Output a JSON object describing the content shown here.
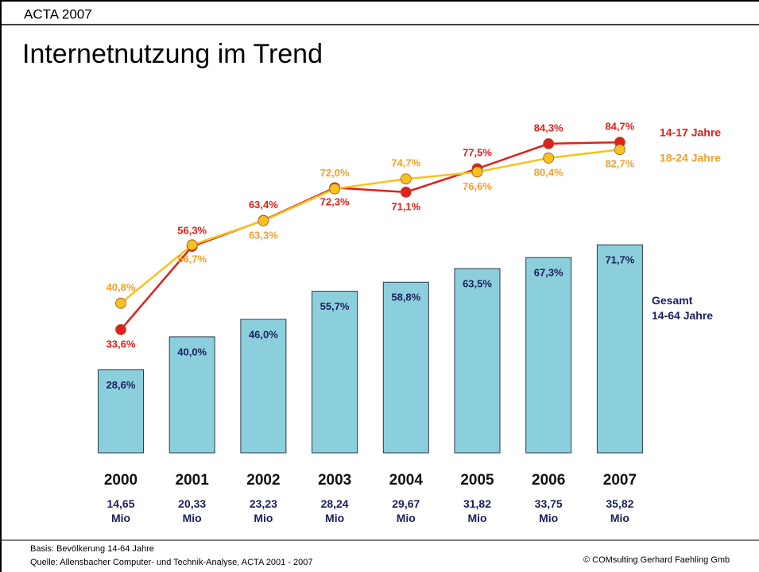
{
  "header": {
    "kicker": "ACTA 2007",
    "title": "Internetnutzung im Trend"
  },
  "chart_data": {
    "type": "bar-line",
    "categories": [
      "2000",
      "2001",
      "2002",
      "2003",
      "2004",
      "2005",
      "2006",
      "2007"
    ],
    "category_sublabels": [
      "14,65\nMio",
      "20,33\nMio",
      "23,23\nMio",
      "28,24\nMio",
      "29,67\nMio",
      "31,82\nMio",
      "33,75\nMio",
      "35,82\nMio"
    ],
    "ylim": [
      0,
      115
    ],
    "y2lim": [
      0,
      91
    ],
    "series": [
      {
        "name": "Gesamt\n14-64 Jahre",
        "type": "bar",
        "color": "#8ccfdc",
        "label_color": "#1a1f5c",
        "values": [
          28.6,
          40.0,
          46.0,
          55.7,
          58.8,
          63.5,
          67.3,
          71.7
        ],
        "value_labels": [
          "28,6%",
          "40,0%",
          "46,0%",
          "55,7%",
          "58,8%",
          "63,5%",
          "67,3%",
          "71,7%"
        ]
      },
      {
        "name": "14-17 Jahre",
        "type": "line",
        "axis": "y2",
        "color": "#e0201c",
        "label_color": "#e0201c",
        "values": [
          33.6,
          56.3,
          63.4,
          72.3,
          71.1,
          77.5,
          84.3,
          84.7
        ],
        "value_labels": [
          "33,6%",
          "56,3%",
          "63,4%",
          "72,3%",
          "71,1%",
          "77,5%",
          "84,3%",
          "84,7%"
        ]
      },
      {
        "name": "18-24 Jahre",
        "type": "line",
        "axis": "y2",
        "color": "#f6c21c",
        "label_color": "#f0a030",
        "values": [
          40.8,
          56.7,
          63.3,
          72.0,
          74.7,
          76.6,
          80.4,
          82.7
        ],
        "value_labels": [
          "40,8%",
          "56,7%",
          "63,3%",
          "72,0%",
          "74,7%",
          "76,6%",
          "80,4%",
          "82,7%"
        ]
      }
    ]
  },
  "footer": {
    "basis": "Basis: Bevölkerung 14-64 Jahre",
    "source": "Quelle: Allensbacher Computer- und Technik-Analyse, ACTA 2001 - 2007",
    "copyright": "© COMsulting Gerhard Faehling Gmb"
  }
}
